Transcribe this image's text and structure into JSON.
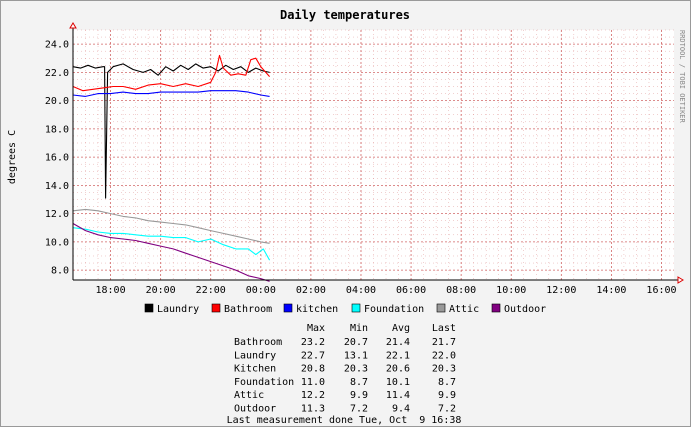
{
  "chart_data": {
    "type": "line",
    "title": "Daily temperatures",
    "ylabel": "degrees C",
    "side_label": "RRDTOOL / TOBI OETIKER",
    "x_unit": "hours since 16:30",
    "x_range": [
      0,
      24
    ],
    "ylim": [
      7.3,
      25.0
    ],
    "y_ticks": [
      "24.0",
      "22.0",
      "20.0",
      "18.0",
      "16.0",
      "14.0",
      "12.0",
      "10.0",
      "8.0"
    ],
    "x_tick_labels": [
      "18:00",
      "20:00",
      "22:00",
      "00:00",
      "02:00",
      "04:00",
      "06:00",
      "08:00",
      "10:00",
      "12:00",
      "14:00",
      "16:00"
    ],
    "series": [
      {
        "name": "Laundry",
        "color": "#000000",
        "points": [
          [
            0,
            22.4
          ],
          [
            0.3,
            22.3
          ],
          [
            0.6,
            22.5
          ],
          [
            0.9,
            22.3
          ],
          [
            1.2,
            22.4
          ],
          [
            1.26,
            22.4
          ],
          [
            1.3,
            13.1
          ],
          [
            1.38,
            22.0
          ],
          [
            1.6,
            22.4
          ],
          [
            2.0,
            22.6
          ],
          [
            2.4,
            22.2
          ],
          [
            2.8,
            22.0
          ],
          [
            3.1,
            22.2
          ],
          [
            3.4,
            21.8
          ],
          [
            3.7,
            22.4
          ],
          [
            4.0,
            22.1
          ],
          [
            4.3,
            22.5
          ],
          [
            4.6,
            22.2
          ],
          [
            4.9,
            22.6
          ],
          [
            5.2,
            22.3
          ],
          [
            5.5,
            22.4
          ],
          [
            5.8,
            22.1
          ],
          [
            6.1,
            22.5
          ],
          [
            6.4,
            22.2
          ],
          [
            6.7,
            22.4
          ],
          [
            7.0,
            22.0
          ],
          [
            7.3,
            22.3
          ],
          [
            7.6,
            22.1
          ],
          [
            7.85,
            22.0
          ]
        ]
      },
      {
        "name": "Bathroom",
        "color": "#ff0000",
        "points": [
          [
            0,
            21.0
          ],
          [
            0.4,
            20.7
          ],
          [
            0.8,
            20.8
          ],
          [
            1.2,
            20.9
          ],
          [
            1.6,
            21.0
          ],
          [
            2.0,
            21.0
          ],
          [
            2.5,
            20.8
          ],
          [
            3.0,
            21.1
          ],
          [
            3.5,
            21.2
          ],
          [
            4.0,
            21.0
          ],
          [
            4.5,
            21.2
          ],
          [
            5.0,
            21.0
          ],
          [
            5.5,
            21.3
          ],
          [
            5.7,
            22.0
          ],
          [
            5.85,
            23.2
          ],
          [
            6.0,
            22.3
          ],
          [
            6.3,
            21.8
          ],
          [
            6.6,
            21.9
          ],
          [
            6.9,
            21.8
          ],
          [
            7.1,
            22.9
          ],
          [
            7.3,
            23.0
          ],
          [
            7.5,
            22.4
          ],
          [
            7.85,
            21.7
          ]
        ]
      },
      {
        "name": "kitchen",
        "color": "#0000ff",
        "points": [
          [
            0,
            20.4
          ],
          [
            0.5,
            20.3
          ],
          [
            1.0,
            20.5
          ],
          [
            1.5,
            20.5
          ],
          [
            2.0,
            20.6
          ],
          [
            2.5,
            20.5
          ],
          [
            3.0,
            20.5
          ],
          [
            3.5,
            20.6
          ],
          [
            4.0,
            20.6
          ],
          [
            4.5,
            20.6
          ],
          [
            5.0,
            20.6
          ],
          [
            5.5,
            20.7
          ],
          [
            6.0,
            20.7
          ],
          [
            6.5,
            20.7
          ],
          [
            7.0,
            20.6
          ],
          [
            7.5,
            20.4
          ],
          [
            7.85,
            20.3
          ]
        ]
      },
      {
        "name": "Foundation",
        "color": "#00ffff",
        "points": [
          [
            0,
            11.0
          ],
          [
            0.5,
            10.9
          ],
          [
            1.0,
            10.7
          ],
          [
            1.5,
            10.6
          ],
          [
            2.0,
            10.6
          ],
          [
            2.5,
            10.5
          ],
          [
            3.0,
            10.4
          ],
          [
            3.5,
            10.4
          ],
          [
            4.0,
            10.3
          ],
          [
            4.5,
            10.3
          ],
          [
            5.0,
            10.0
          ],
          [
            5.5,
            10.2
          ],
          [
            6.0,
            9.8
          ],
          [
            6.5,
            9.5
          ],
          [
            7.0,
            9.5
          ],
          [
            7.3,
            9.1
          ],
          [
            7.6,
            9.5
          ],
          [
            7.85,
            8.7
          ]
        ]
      },
      {
        "name": "Attic",
        "color": "#999999",
        "points": [
          [
            0,
            12.2
          ],
          [
            0.5,
            12.3
          ],
          [
            1.0,
            12.2
          ],
          [
            1.5,
            12.0
          ],
          [
            2.0,
            11.8
          ],
          [
            2.5,
            11.7
          ],
          [
            3.0,
            11.5
          ],
          [
            3.5,
            11.4
          ],
          [
            4.0,
            11.3
          ],
          [
            4.5,
            11.2
          ],
          [
            5.0,
            11.0
          ],
          [
            5.5,
            10.8
          ],
          [
            6.0,
            10.6
          ],
          [
            6.5,
            10.4
          ],
          [
            7.0,
            10.2
          ],
          [
            7.5,
            10.0
          ],
          [
            7.85,
            9.9
          ]
        ]
      },
      {
        "name": "Outdoor",
        "color": "#800080",
        "points": [
          [
            0,
            11.3
          ],
          [
            0.5,
            10.8
          ],
          [
            1.0,
            10.5
          ],
          [
            1.5,
            10.3
          ],
          [
            2.0,
            10.2
          ],
          [
            2.5,
            10.1
          ],
          [
            3.0,
            9.9
          ],
          [
            3.5,
            9.7
          ],
          [
            4.0,
            9.5
          ],
          [
            4.5,
            9.2
          ],
          [
            5.0,
            8.9
          ],
          [
            5.5,
            8.6
          ],
          [
            6.0,
            8.3
          ],
          [
            6.5,
            8.0
          ],
          [
            7.0,
            7.6
          ],
          [
            7.5,
            7.4
          ],
          [
            7.85,
            7.2
          ]
        ]
      }
    ],
    "legend": [
      {
        "label": "Laundry",
        "color": "#000000"
      },
      {
        "label": "Bathroom",
        "color": "#ff0000"
      },
      {
        "label": "kitchen",
        "color": "#0000ff"
      },
      {
        "label": "Foundation",
        "color": "#00ffff"
      },
      {
        "label": "Attic",
        "color": "#999999"
      },
      {
        "label": "Outdoor",
        "color": "#800080"
      }
    ],
    "stats_table": {
      "headers": [
        "Max",
        "Min",
        "Avg",
        "Last"
      ],
      "rows": [
        {
          "name": "Bathroom",
          "values": [
            "23.2",
            "20.7",
            "21.4",
            "21.7"
          ]
        },
        {
          "name": "Laundry",
          "values": [
            "22.7",
            "13.1",
            "22.1",
            "22.0"
          ]
        },
        {
          "name": "Kitchen",
          "values": [
            "20.8",
            "20.3",
            "20.6",
            "20.3"
          ]
        },
        {
          "name": "Foundation",
          "values": [
            "11.0",
            "8.7",
            "10.1",
            "8.7"
          ]
        },
        {
          "name": "Attic",
          "values": [
            "12.2",
            "9.9",
            "11.4",
            "9.9"
          ]
        },
        {
          "name": "Outdoor",
          "values": [
            "11.3",
            "7.2",
            "9.4",
            "7.2"
          ]
        }
      ]
    },
    "footer": "Last measurement done Tue, Oct  9 16:38"
  },
  "colors": {
    "background": "#f3f3f3",
    "plot": "#ffffff",
    "grid": "#cc5555"
  }
}
